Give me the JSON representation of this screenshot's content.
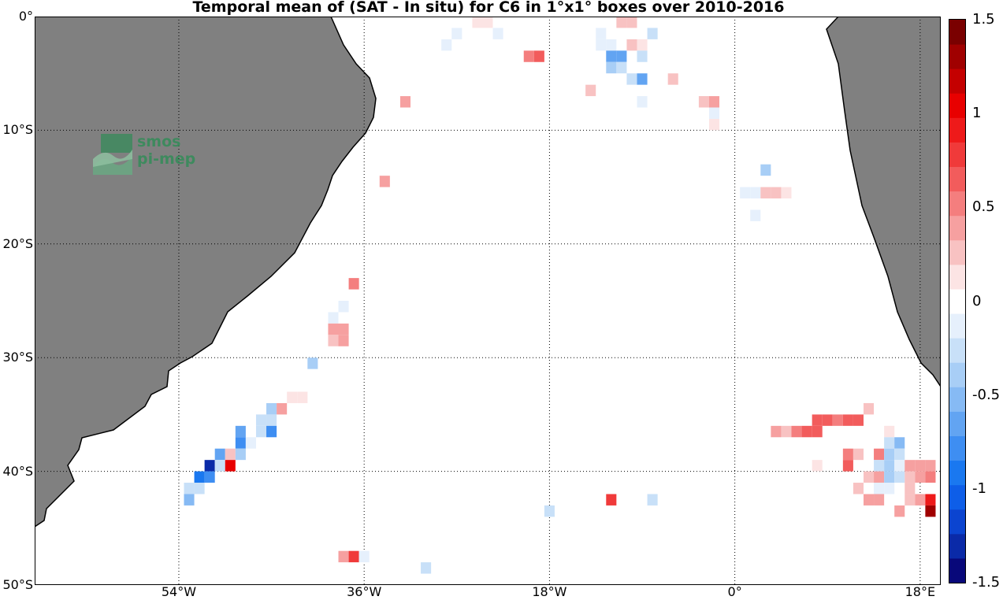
{
  "title": "Temporal mean of (SAT - In situ) for C6 in 1°x1° boxes over 2010-2016",
  "lat_ticks": [
    "0°",
    "10°S",
    "20°S",
    "30°S",
    "40°S",
    "50°S"
  ],
  "lon_ticks": [
    "54°W",
    "36°W",
    "18°W",
    "0°",
    "18°E"
  ],
  "colorbar": {
    "ticks": [
      "1.5",
      "1",
      "0.5",
      "0",
      "-0.5",
      "-1",
      "-1.5"
    ],
    "min": -1.5,
    "max": 1.5,
    "colors": [
      "#08087a",
      "#0a2aa8",
      "#0b44d0",
      "#0e5ee8",
      "#1a78f0",
      "#3e8ef2",
      "#62a4f2",
      "#86baf4",
      "#a8cef6",
      "#c8e0f8",
      "#e6f0fc",
      "#ffffff",
      "#fce4e4",
      "#f8c2c2",
      "#f6a0a0",
      "#f47e7e",
      "#f25c5c",
      "#f03a3a",
      "#ee1a1a",
      "#e80000",
      "#c40000",
      "#a00000",
      "#7a0000"
    ]
  },
  "logo": {
    "line1": "smos",
    "line2": "pi-mep"
  },
  "map": {
    "lon_range": [
      -68,
      20
    ],
    "lat_range": [
      -50,
      0
    ],
    "land_color": "#808080",
    "grid": "dotted"
  },
  "chart_data": {
    "type": "heatmap",
    "title": "Temporal mean of (SAT - In situ) for C6 in 1°x1° boxes over 2010-2016",
    "xlabel": "",
    "ylabel": "",
    "xlim": [
      -68,
      20
    ],
    "ylim": [
      -50,
      0
    ],
    "clim": [
      -1.5,
      1.5
    ],
    "cells": [
      {
        "lon": -25,
        "lat": -0.5,
        "value": 0.1
      },
      {
        "lon": -24,
        "lat": -0.5,
        "value": 0.15
      },
      {
        "lon": -27,
        "lat": -1.5,
        "value": -0.15
      },
      {
        "lon": -23,
        "lat": -1.5,
        "value": -0.15
      },
      {
        "lon": -28,
        "lat": -2.5,
        "value": -0.15
      },
      {
        "lon": -20,
        "lat": -3.5,
        "value": 0.55
      },
      {
        "lon": -19,
        "lat": -3.5,
        "value": 0.7
      },
      {
        "lon": -13,
        "lat": -1.5,
        "value": -0.15
      },
      {
        "lon": -13,
        "lat": -2.5,
        "value": -0.1
      },
      {
        "lon": -12,
        "lat": -2.5,
        "value": -0.15
      },
      {
        "lon": -11,
        "lat": -0.5,
        "value": 0.2
      },
      {
        "lon": -10,
        "lat": -0.5,
        "value": 0.25
      },
      {
        "lon": -10,
        "lat": -2.5,
        "value": 0.2
      },
      {
        "lon": -9,
        "lat": -2.5,
        "value": 0.15
      },
      {
        "lon": -8,
        "lat": -1.5,
        "value": -0.2
      },
      {
        "lon": -12,
        "lat": -3.5,
        "value": -0.7
      },
      {
        "lon": -11,
        "lat": -3.5,
        "value": -0.7
      },
      {
        "lon": -12,
        "lat": -4.5,
        "value": -0.35
      },
      {
        "lon": -11,
        "lat": -4.5,
        "value": -0.3
      },
      {
        "lon": -9,
        "lat": -3.5,
        "value": -0.25
      },
      {
        "lon": -10,
        "lat": -5.5,
        "value": -0.25
      },
      {
        "lon": -9,
        "lat": -5.5,
        "value": -0.7
      },
      {
        "lon": -14,
        "lat": -6.5,
        "value": 0.2
      },
      {
        "lon": -9,
        "lat": -7.5,
        "value": -0.15
      },
      {
        "lon": -6,
        "lat": -5.5,
        "value": 0.2
      },
      {
        "lon": -3,
        "lat": -7.5,
        "value": 0.2
      },
      {
        "lon": -2,
        "lat": -7.5,
        "value": 0.4
      },
      {
        "lon": -2,
        "lat": -8.5,
        "value": -0.15
      },
      {
        "lon": -2,
        "lat": -9.5,
        "value": 0.15
      },
      {
        "lon": -32,
        "lat": -7.5,
        "value": 0.45
      },
      {
        "lon": -34,
        "lat": -14.5,
        "value": 0.45
      },
      {
        "lon": 3,
        "lat": -13.5,
        "value": -0.4
      },
      {
        "lon": 1,
        "lat": -15.5,
        "value": -0.15
      },
      {
        "lon": 2,
        "lat": -15.5,
        "value": -0.1
      },
      {
        "lon": 3,
        "lat": -15.5,
        "value": 0.25
      },
      {
        "lon": 4,
        "lat": -15.5,
        "value": 0.2
      },
      {
        "lon": 5,
        "lat": -15.5,
        "value": 0.15
      },
      {
        "lon": 2,
        "lat": -17.5,
        "value": -0.15
      },
      {
        "lon": -37,
        "lat": -23.5,
        "value": 0.55
      },
      {
        "lon": -38,
        "lat": -25.5,
        "value": -0.15
      },
      {
        "lon": -39,
        "lat": -26.5,
        "value": -0.1
      },
      {
        "lon": -39,
        "lat": -27.5,
        "value": 0.4
      },
      {
        "lon": -38,
        "lat": -27.5,
        "value": 0.35
      },
      {
        "lon": -39,
        "lat": -28.5,
        "value": 0.3
      },
      {
        "lon": -38,
        "lat": -28.5,
        "value": 0.35
      },
      {
        "lon": -41,
        "lat": -30.5,
        "value": -0.45
      },
      {
        "lon": -42,
        "lat": -33.5,
        "value": 0.15
      },
      {
        "lon": -43,
        "lat": -33.5,
        "value": 0.15
      },
      {
        "lon": -45,
        "lat": -34.5,
        "value": -0.4
      },
      {
        "lon": -44,
        "lat": -34.5,
        "value": 0.4
      },
      {
        "lon": -46,
        "lat": -35.5,
        "value": -0.25
      },
      {
        "lon": -45,
        "lat": -35.5,
        "value": -0.3
      },
      {
        "lon": -48,
        "lat": -36.5,
        "value": -0.7
      },
      {
        "lon": -46,
        "lat": -36.5,
        "value": -0.3
      },
      {
        "lon": -45,
        "lat": -36.5,
        "value": -0.75
      },
      {
        "lon": -48,
        "lat": -37.5,
        "value": -0.8
      },
      {
        "lon": -47,
        "lat": -37.5,
        "value": -0.1
      },
      {
        "lon": -50,
        "lat": -38.5,
        "value": -0.7
      },
      {
        "lon": -49,
        "lat": -38.5,
        "value": 0.3
      },
      {
        "lon": -48,
        "lat": -38.5,
        "value": -0.35
      },
      {
        "lon": -51,
        "lat": -39.5,
        "value": -1.3
      },
      {
        "lon": -50,
        "lat": -39.5,
        "value": -0.3
      },
      {
        "lon": -49,
        "lat": -39.5,
        "value": 1.0
      },
      {
        "lon": -52,
        "lat": -40.5,
        "value": -0.95
      },
      {
        "lon": -51,
        "lat": -40.5,
        "value": -0.75
      },
      {
        "lon": -53,
        "lat": -41.5,
        "value": -0.2
      },
      {
        "lon": -52,
        "lat": -41.5,
        "value": -0.25
      },
      {
        "lon": -53,
        "lat": -42.5,
        "value": -0.5
      },
      {
        "lon": -38,
        "lat": -47.5,
        "value": 0.45
      },
      {
        "lon": -37,
        "lat": -47.5,
        "value": 0.75
      },
      {
        "lon": -36,
        "lat": -47.5,
        "value": -0.15
      },
      {
        "lon": -30,
        "lat": -48.5,
        "value": -0.2
      },
      {
        "lon": -18,
        "lat": -43.5,
        "value": -0.25
      },
      {
        "lon": -12,
        "lat": -42.5,
        "value": 0.8
      },
      {
        "lon": -8,
        "lat": -42.5,
        "value": -0.3
      },
      {
        "lon": 13,
        "lat": -34.5,
        "value": 0.3
      },
      {
        "lon": 8,
        "lat": -35.5,
        "value": 0.6
      },
      {
        "lon": 9,
        "lat": -35.5,
        "value": 0.6
      },
      {
        "lon": 10,
        "lat": -35.5,
        "value": 0.5
      },
      {
        "lon": 11,
        "lat": -35.5,
        "value": 0.6
      },
      {
        "lon": 12,
        "lat": -35.5,
        "value": 0.6
      },
      {
        "lon": 4,
        "lat": -36.5,
        "value": 0.45
      },
      {
        "lon": 5,
        "lat": -36.5,
        "value": 0.3
      },
      {
        "lon": 6,
        "lat": -36.5,
        "value": 0.5
      },
      {
        "lon": 7,
        "lat": -36.5,
        "value": 0.65
      },
      {
        "lon": 8,
        "lat": -36.5,
        "value": 0.6
      },
      {
        "lon": 15,
        "lat": -36.5,
        "value": 0.15
      },
      {
        "lon": 15,
        "lat": -37.5,
        "value": -0.2
      },
      {
        "lon": 16,
        "lat": -37.5,
        "value": -0.5
      },
      {
        "lon": 11,
        "lat": -38.5,
        "value": 0.5
      },
      {
        "lon": 12,
        "lat": -38.5,
        "value": 0.2
      },
      {
        "lon": 14,
        "lat": -38.5,
        "value": 0.55
      },
      {
        "lon": 15,
        "lat": -38.5,
        "value": -0.45
      },
      {
        "lon": 16,
        "lat": -38.5,
        "value": -0.25
      },
      {
        "lon": 8,
        "lat": -39.5,
        "value": 0.15
      },
      {
        "lon": 11,
        "lat": -39.5,
        "value": 0.65
      },
      {
        "lon": 14,
        "lat": -39.5,
        "value": -0.3
      },
      {
        "lon": 15,
        "lat": -39.5,
        "value": -0.35
      },
      {
        "lon": 16,
        "lat": -39.5,
        "value": -0.1
      },
      {
        "lon": 17,
        "lat": -39.5,
        "value": 0.35
      },
      {
        "lon": 18,
        "lat": -39.5,
        "value": 0.4
      },
      {
        "lon": 19,
        "lat": -39.5,
        "value": 0.45
      },
      {
        "lon": 13,
        "lat": -40.5,
        "value": 0.3
      },
      {
        "lon": 14,
        "lat": -40.5,
        "value": 0.4
      },
      {
        "lon": 15,
        "lat": -40.5,
        "value": -0.35
      },
      {
        "lon": 16,
        "lat": -40.5,
        "value": -0.2
      },
      {
        "lon": 17,
        "lat": -40.5,
        "value": 0.3
      },
      {
        "lon": 18,
        "lat": -40.5,
        "value": 0.45
      },
      {
        "lon": 19,
        "lat": -40.5,
        "value": 0.5
      },
      {
        "lon": 12,
        "lat": -41.5,
        "value": 0.2
      },
      {
        "lon": 14,
        "lat": -41.5,
        "value": -0.15
      },
      {
        "lon": 15,
        "lat": -41.5,
        "value": -0.15
      },
      {
        "lon": 17,
        "lat": -41.5,
        "value": 0.25
      },
      {
        "lon": 13,
        "lat": -42.5,
        "value": 0.35
      },
      {
        "lon": 14,
        "lat": -42.5,
        "value": 0.35
      },
      {
        "lon": 17,
        "lat": -42.5,
        "value": 0.3
      },
      {
        "lon": 18,
        "lat": -42.5,
        "value": 0.35
      },
      {
        "lon": 19,
        "lat": -42.5,
        "value": 0.95
      },
      {
        "lon": 16,
        "lat": -43.5,
        "value": 0.4
      },
      {
        "lon": 19,
        "lat": -43.5,
        "value": 1.35
      }
    ]
  }
}
